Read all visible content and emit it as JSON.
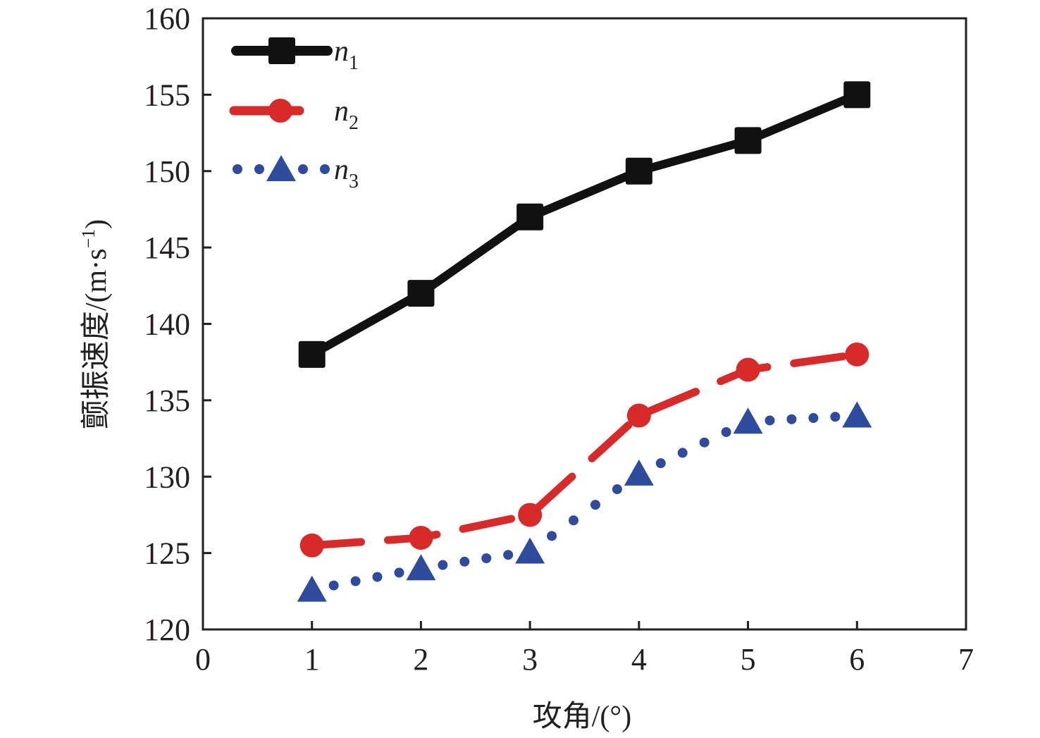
{
  "chart_data": {
    "type": "line",
    "title": "",
    "xlabel": "攻角/(°)",
    "ylabel_main": "颤振速度/(m·s",
    "ylabel_sup": "−1",
    "ylabel_close": ")",
    "xlim": [
      0,
      7
    ],
    "ylim": [
      120,
      160
    ],
    "xticks": [
      0,
      1,
      2,
      3,
      4,
      5,
      6,
      7
    ],
    "xtick_labels": [
      "0",
      "1",
      "2",
      "3",
      "4",
      "5",
      "6",
      "7"
    ],
    "yticks": [
      120,
      125,
      130,
      135,
      140,
      145,
      150,
      155,
      160
    ],
    "ytick_labels": [
      "120",
      "125",
      "130",
      "135",
      "140",
      "145",
      "150",
      "155",
      "160"
    ],
    "grid": false,
    "legend_position": "top-left",
    "x": [
      1,
      2,
      3,
      4,
      5,
      6
    ],
    "series": [
      {
        "name": "n",
        "subscript": "1",
        "values": [
          138,
          142,
          147,
          150,
          152,
          155
        ],
        "color": "#111111",
        "line_style": "solid",
        "marker": "square"
      },
      {
        "name": "n",
        "subscript": "2",
        "values": [
          125.5,
          126,
          127.5,
          134,
          137,
          138
        ],
        "color": "#d92a2a",
        "line_style": "dash",
        "marker": "circle"
      },
      {
        "name": "n",
        "subscript": "3",
        "values": [
          122.6,
          124,
          125.1,
          130.2,
          133.6,
          134
        ],
        "color": "#2f4b9e",
        "line_style": "dot",
        "marker": "triangle"
      }
    ]
  }
}
